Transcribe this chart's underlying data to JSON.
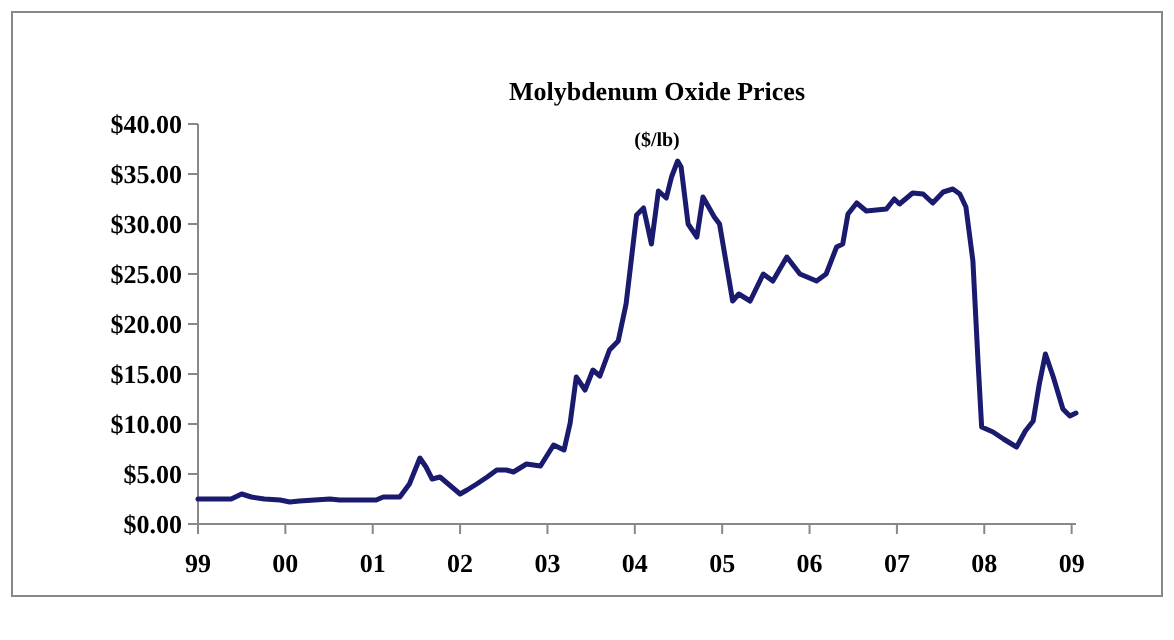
{
  "chart_data": {
    "type": "line",
    "title": "Molybdenum Oxide Prices",
    "subtitle": "($/lb)",
    "x": [
      1999.0,
      1999.38,
      1999.5,
      1999.61,
      1999.76,
      1999.94,
      2000.05,
      2000.16,
      2000.51,
      2000.62,
      2001.04,
      2001.12,
      2001.31,
      2001.42,
      2001.54,
      2001.61,
      2001.68,
      2001.77,
      2002.0,
      2002.08,
      2002.19,
      2002.31,
      2002.42,
      2002.53,
      2002.61,
      2002.76,
      2002.92,
      2003.07,
      2003.19,
      2003.26,
      2003.33,
      2003.43,
      2003.52,
      2003.6,
      2003.71,
      2003.81,
      2003.9,
      2004.02,
      2004.1,
      2004.19,
      2004.27,
      2004.36,
      2004.42,
      2004.49,
      2004.53,
      2004.61,
      2004.71,
      2004.78,
      2004.91,
      2004.97,
      2005.12,
      2005.19,
      2005.32,
      2005.47,
      2005.58,
      2005.74,
      2005.89,
      2006.08,
      2006.19,
      2006.31,
      2006.38,
      2006.44,
      2006.54,
      2006.65,
      2006.88,
      2006.97,
      2007.03,
      2007.18,
      2007.3,
      2007.41,
      2007.53,
      2007.64,
      2007.72,
      2007.79,
      2007.87,
      2007.93,
      2007.97,
      2008.1,
      2008.22,
      2008.37,
      2008.47,
      2008.56,
      2008.63,
      2008.7,
      2008.79,
      2008.9,
      2008.98,
      2009.05
    ],
    "series": [
      {
        "color": "#1a1a6e",
        "values": [
          2.5,
          2.5,
          3.0,
          2.7,
          2.5,
          2.4,
          2.2,
          2.3,
          2.5,
          2.4,
          2.4,
          2.7,
          2.7,
          4.0,
          6.6,
          5.7,
          4.5,
          4.7,
          3.0,
          3.4,
          4.0,
          4.7,
          5.4,
          5.4,
          5.2,
          6.0,
          5.8,
          7.9,
          7.4,
          10.1,
          14.7,
          13.4,
          15.4,
          14.8,
          17.4,
          18.3,
          22,
          30.9,
          31.6,
          28,
          33.3,
          32.6,
          34.7,
          36.3,
          35.7,
          30,
          28.7,
          32.7,
          30.7,
          30,
          22.3,
          23,
          22.3,
          25,
          24.3,
          26.7,
          25,
          24.3,
          25,
          27.7,
          28,
          31,
          32.1,
          31.3,
          31.5,
          32.5,
          32,
          33.1,
          33,
          32.1,
          33.2,
          33.5,
          33,
          31.7,
          26.3,
          16,
          9.7,
          9.2,
          8.5,
          7.7,
          9.3,
          10.3,
          14,
          17,
          14.7,
          11.5,
          10.8,
          11.1
        ]
      }
    ],
    "xlim": [
      1999,
      2009.05
    ],
    "xticks": [
      {
        "value": 1999,
        "label": "99"
      },
      {
        "value": 2000,
        "label": "00"
      },
      {
        "value": 2001,
        "label": "01"
      },
      {
        "value": 2002,
        "label": "02"
      },
      {
        "value": 2003,
        "label": "03"
      },
      {
        "value": 2004,
        "label": "04"
      },
      {
        "value": 2005,
        "label": "05"
      },
      {
        "value": 2006,
        "label": "06"
      },
      {
        "value": 2007,
        "label": "07"
      },
      {
        "value": 2008,
        "label": "08"
      },
      {
        "value": 2009,
        "label": "09"
      }
    ],
    "ylim": [
      0,
      40
    ],
    "yticks": [
      {
        "value": 0,
        "label": "$0.00"
      },
      {
        "value": 5,
        "label": "$5.00"
      },
      {
        "value": 10,
        "label": "$10.00"
      },
      {
        "value": 15,
        "label": "$15.00"
      },
      {
        "value": 20,
        "label": "$20.00"
      },
      {
        "value": 25,
        "label": "$25.00"
      },
      {
        "value": 30,
        "label": "$30.00"
      },
      {
        "value": 35,
        "label": "$35.00"
      },
      {
        "value": 40,
        "label": "$40.00"
      }
    ],
    "grid": false,
    "marker": "none",
    "line_style": "solid"
  }
}
